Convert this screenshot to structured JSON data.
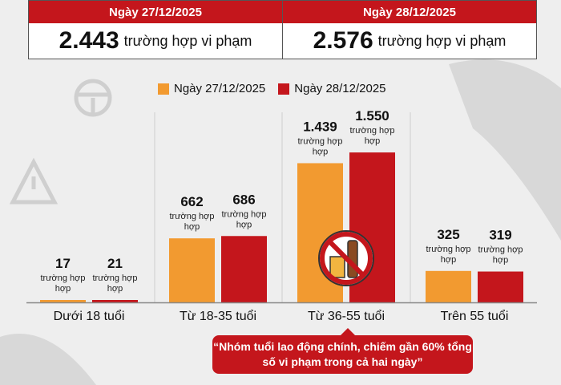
{
  "summary": [
    {
      "date": "Ngày 27/12/2025",
      "value": "2.443",
      "unit": "trường hợp vi phạm"
    },
    {
      "date": "Ngày 28/12/2025",
      "value": "2.576",
      "unit": "trường hợp vi phạm"
    }
  ],
  "colors": {
    "day1": "#f29a30",
    "day2": "#c4161c",
    "header": "#c4161c"
  },
  "icons": [
    "steering-wheel-icon",
    "warning-triangle-icon",
    "traffic-light-icon",
    "no-alcohol-icon"
  ],
  "chart_data": {
    "type": "bar",
    "categories": [
      "Dưới 18 tuổi",
      "Từ 18-35 tuổi",
      "Từ 36-55 tuổi",
      "Trên 55 tuổi"
    ],
    "series": [
      {
        "name": "Ngày 27/12/2025",
        "values": [
          17,
          662,
          1439,
          325
        ],
        "labels": [
          "17",
          "662",
          "1.439",
          "325"
        ]
      },
      {
        "name": "Ngày 28/12/2025",
        "values": [
          21,
          686,
          1550,
          319
        ],
        "labels": [
          "21",
          "686",
          "1.550",
          "319"
        ]
      }
    ],
    "value_unit_line1": "trường hợp",
    "value_unit_line2": "hợp",
    "legend": "top",
    "grid": false,
    "annotation": "“Nhóm tuổi lao động chính, chiếm gần 60% tổng số vi phạm trong cả hai ngày”"
  }
}
